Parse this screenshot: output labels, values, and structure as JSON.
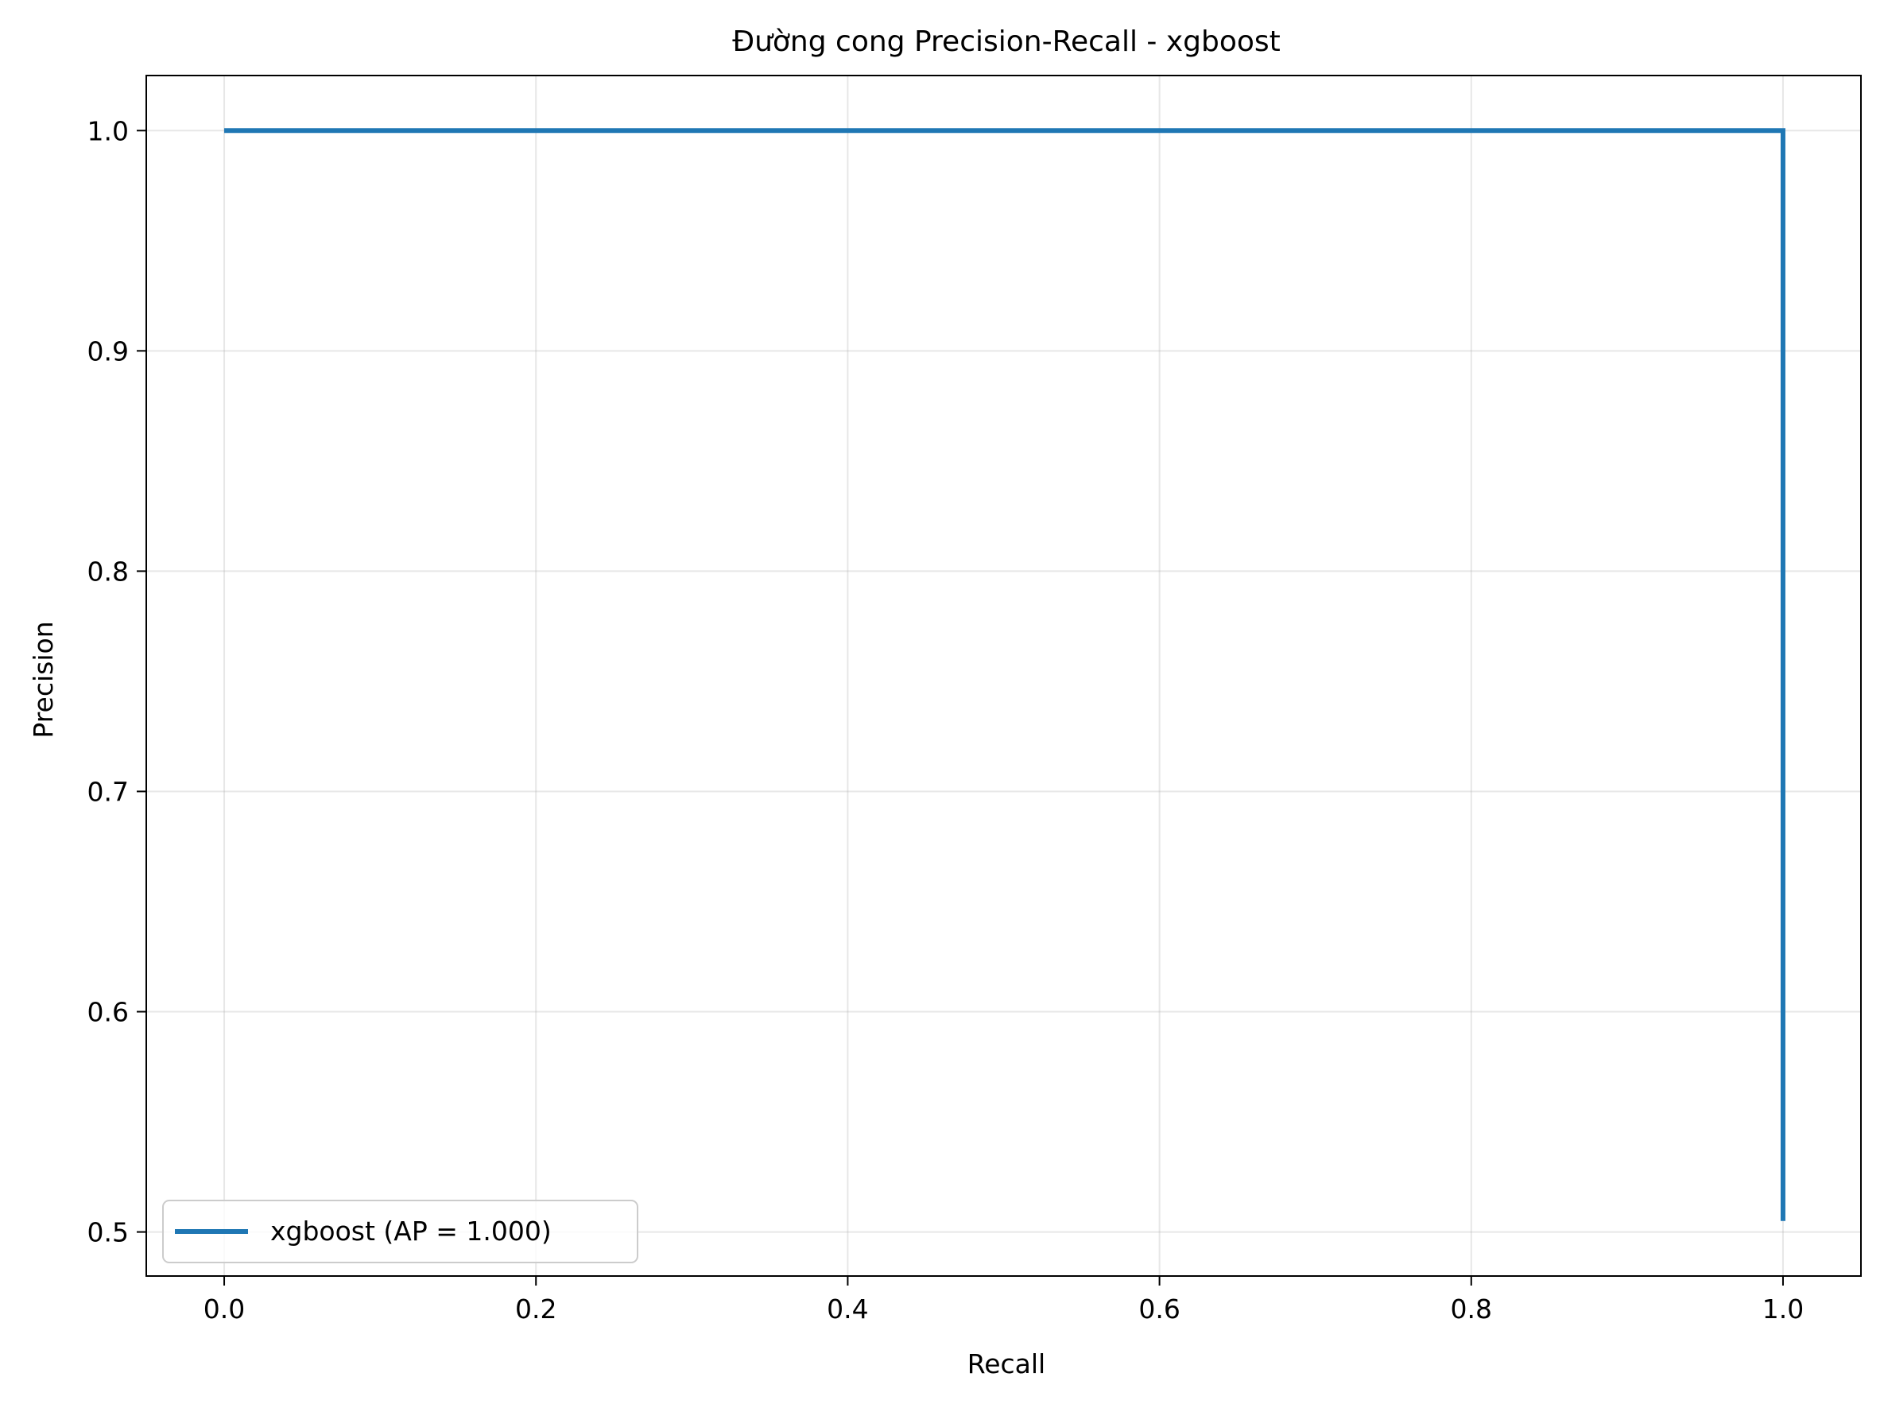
{
  "chart_data": {
    "type": "line",
    "title": "Đường cong Precision-Recall - xgboost",
    "xlabel": "Recall",
    "ylabel": "Precision",
    "xlim": [
      -0.05,
      1.05
    ],
    "ylim": [
      0.48,
      1.025
    ],
    "grid": true,
    "legend_position": "lower-left",
    "x_ticks": [
      0.0,
      0.2,
      0.4,
      0.6,
      0.8,
      1.0
    ],
    "x_tick_labels": [
      "0.0",
      "0.2",
      "0.4",
      "0.6",
      "0.8",
      "1.0"
    ],
    "y_ticks": [
      0.5,
      0.6,
      0.7,
      0.8,
      0.9,
      1.0
    ],
    "y_tick_labels": [
      "0.5",
      "0.6",
      "0.7",
      "0.8",
      "0.9",
      "1.0"
    ],
    "series": [
      {
        "name": "xgboost (AP = 1.000)",
        "color": "#1f77b4",
        "x": [
          0.0,
          1.0,
          1.0
        ],
        "y": [
          1.0,
          1.0,
          0.505
        ]
      }
    ]
  }
}
